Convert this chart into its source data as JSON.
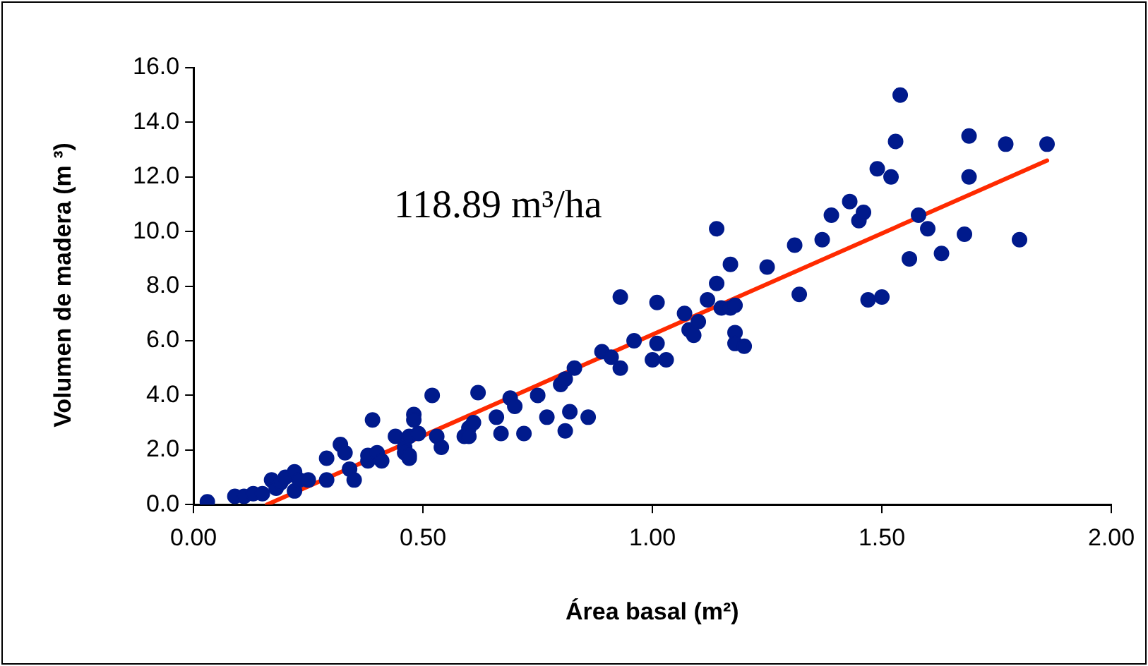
{
  "chart_data": {
    "type": "scatter",
    "xlabel": "Área basal (m²)",
    "ylabel": "Volumen de madera (m ³)",
    "annotations": [
      "118.89 m³/ha"
    ],
    "xlim": [
      0,
      2
    ],
    "xticks": [
      {
        "value": 0,
        "label": "0.00"
      },
      {
        "value": 0.5,
        "label": "0.50"
      },
      {
        "value": 1,
        "label": "1.00"
      },
      {
        "value": 1.5,
        "label": "1.50"
      },
      {
        "value": 2,
        "label": "2.00"
      }
    ],
    "ylim": [
      0,
      16
    ],
    "yticks": [
      {
        "value": 0,
        "label": "0.0"
      },
      {
        "value": 2,
        "label": "2.0"
      },
      {
        "value": 4,
        "label": "4.0"
      },
      {
        "value": 6,
        "label": "6.0"
      },
      {
        "value": 8,
        "label": "8.0"
      },
      {
        "value": 10,
        "label": "10.0"
      },
      {
        "value": 12,
        "label": "12.0"
      },
      {
        "value": 14,
        "label": "14.0"
      },
      {
        "value": 16,
        "label": "16.0"
      }
    ],
    "series": [
      {
        "marker": "circle",
        "color": "#001a8c",
        "x": [
          0.03,
          0.09,
          0.11,
          0.13,
          0.15,
          0.17,
          0.18,
          0.19,
          0.2,
          0.22,
          0.22,
          0.23,
          0.25,
          0.29,
          0.29,
          0.32,
          0.33,
          0.34,
          0.35,
          0.38,
          0.38,
          0.39,
          0.4,
          0.41,
          0.44,
          0.46,
          0.46,
          0.47,
          0.47,
          0.48,
          0.48,
          0.47,
          0.49,
          0.52,
          0.53,
          0.54,
          0.59,
          0.6,
          0.6,
          0.61,
          0.62,
          0.66,
          0.67,
          0.69,
          0.7,
          0.72,
          0.75,
          0.77,
          0.8,
          0.81,
          0.81,
          0.82,
          0.83,
          0.86,
          0.89,
          0.91,
          0.93,
          0.93,
          0.96,
          1.0,
          1.01,
          1.01,
          1.03,
          1.07,
          1.08,
          1.09,
          1.1,
          1.12,
          1.14,
          1.14,
          1.15,
          1.17,
          1.17,
          1.18,
          1.18,
          1.18,
          1.2,
          1.25,
          1.31,
          1.32,
          1.37,
          1.39,
          1.43,
          1.45,
          1.46,
          1.47,
          1.49,
          1.5,
          1.52,
          1.53,
          1.54,
          1.56,
          1.58,
          1.6,
          1.63,
          1.68,
          1.69,
          1.69,
          1.77,
          1.8,
          1.86
        ],
        "values": [
          0.1,
          0.3,
          0.3,
          0.4,
          0.4,
          0.9,
          0.6,
          0.8,
          1.0,
          1.2,
          0.5,
          0.9,
          0.9,
          1.7,
          0.9,
          2.2,
          1.9,
          1.3,
          0.9,
          1.6,
          1.8,
          3.1,
          1.9,
          1.6,
          2.5,
          2.1,
          1.9,
          1.7,
          1.8,
          3.3,
          3.1,
          2.5,
          2.6,
          4.0,
          2.5,
          2.1,
          2.5,
          2.8,
          2.5,
          3.0,
          4.1,
          3.2,
          2.6,
          3.9,
          3.6,
          2.6,
          4.0,
          3.2,
          4.4,
          2.7,
          4.6,
          3.4,
          5.0,
          3.2,
          5.6,
          5.4,
          7.6,
          5.0,
          6.0,
          5.3,
          5.9,
          7.4,
          5.3,
          7.0,
          6.4,
          6.2,
          6.7,
          7.5,
          10.1,
          8.1,
          7.2,
          7.2,
          8.8,
          6.3,
          5.9,
          7.3,
          5.8,
          8.7,
          9.5,
          7.7,
          9.7,
          10.6,
          11.1,
          10.4,
          10.7,
          7.5,
          12.3,
          7.6,
          12.0,
          13.3,
          15.0,
          9.0,
          10.6,
          10.1,
          9.2,
          9.9,
          13.5,
          12.0,
          13.2,
          9.7,
          13.2
        ]
      },
      {
        "type": "line",
        "marker": "none",
        "color": "#ff2a00",
        "x": [
          0.16,
          1.86
        ],
        "values": [
          0,
          12.6
        ]
      }
    ]
  }
}
